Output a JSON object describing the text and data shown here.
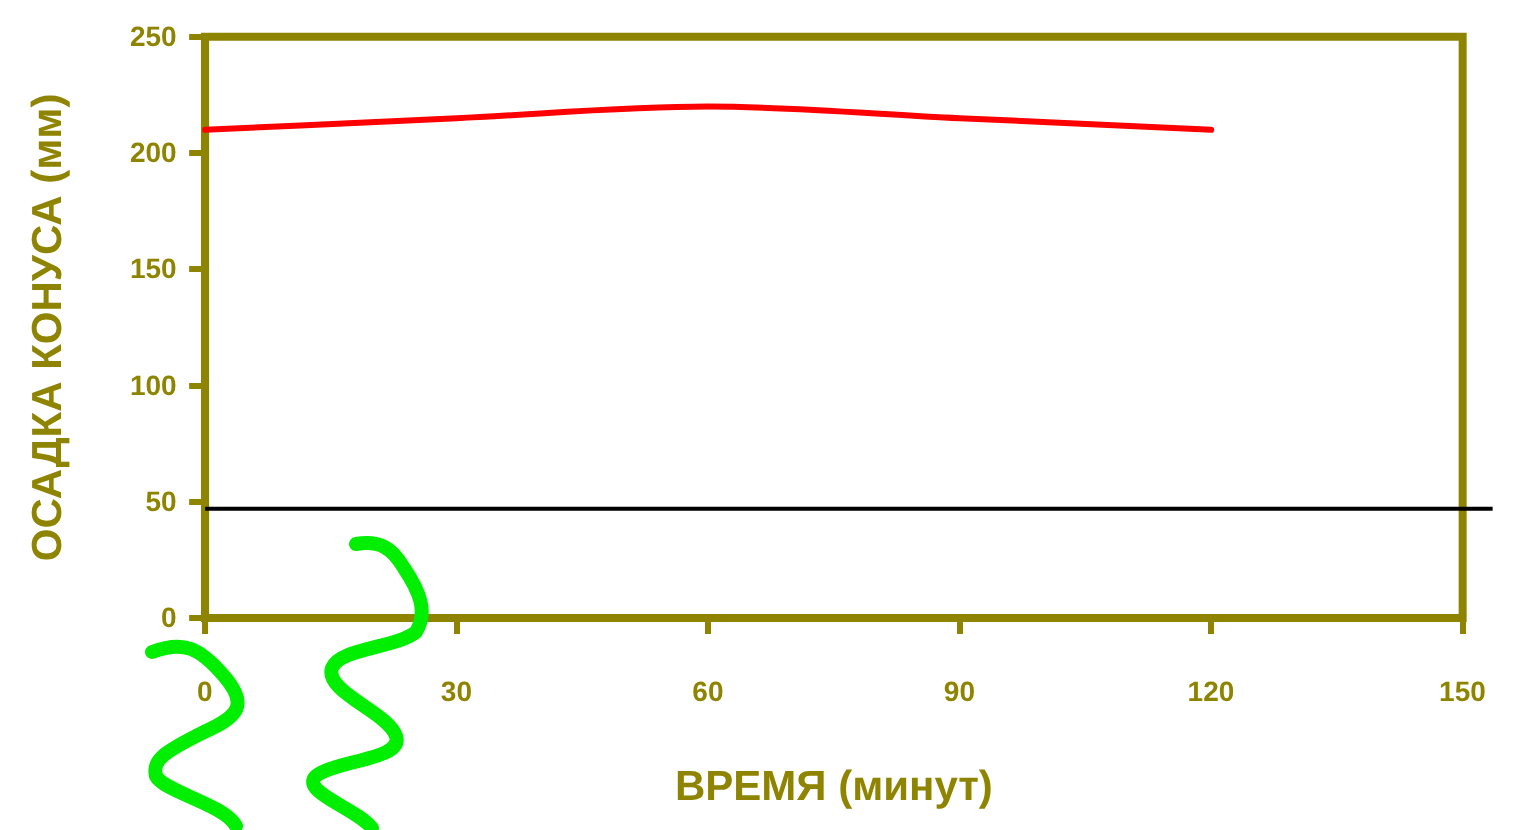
{
  "chart_data": {
    "type": "line",
    "xlabel": "ВРЕМЯ (минут)",
    "ylabel": "ОСАДКА КОНУСА (мм)",
    "x": [
      0,
      30,
      60,
      90,
      120
    ],
    "series": [
      {
        "color": "#ff0000",
        "values": [
          210,
          215,
          220,
          215,
          210
        ]
      }
    ],
    "xlim": [
      0,
      150
    ],
    "xticks": [
      0,
      30,
      60,
      90,
      120,
      150
    ],
    "ylim": [
      0,
      250
    ],
    "yticks": [
      0,
      50,
      100,
      150,
      200,
      250
    ],
    "ref_lines": [
      {
        "axis": "y",
        "value": 47,
        "color": "#000000"
      }
    ],
    "grid": false,
    "legend": false,
    "marker": "none",
    "line_style": "solid"
  }
}
